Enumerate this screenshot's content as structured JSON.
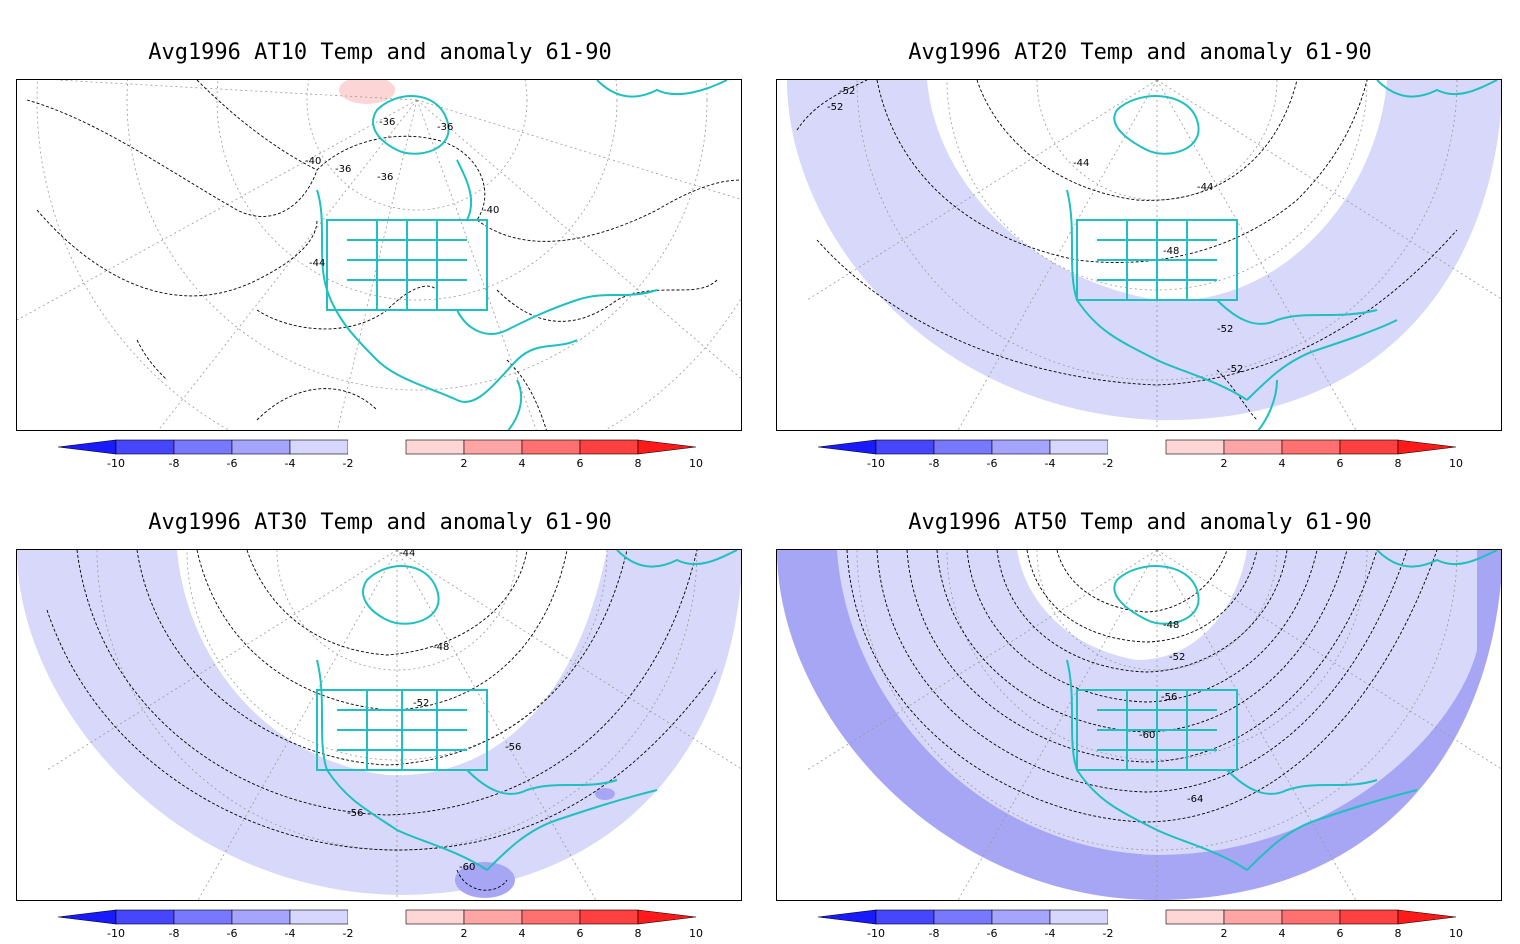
{
  "panels": [
    {
      "title": "Avg1996 AT10 Temp and anomaly 61-90",
      "contour_labels": [
        "-36",
        "-36",
        "-40",
        "-36",
        "-36",
        "-40",
        "-44"
      ]
    },
    {
      "title": "Avg1996 AT20 Temp and anomaly 61-90",
      "contour_labels": [
        "-52",
        "-52",
        "-44",
        "-44",
        "-48",
        "-52",
        "-52"
      ]
    },
    {
      "title": "Avg1996 AT30 Temp and anomaly 61-90",
      "contour_labels": [
        "-44",
        "-48",
        "-52",
        "-56",
        "-56",
        "-60"
      ]
    },
    {
      "title": "Avg1996 AT50 Temp and anomaly 61-90",
      "contour_labels": [
        "-48",
        "-52",
        "-56",
        "-60",
        "-64"
      ]
    }
  ],
  "colorbar": {
    "tick_labels": [
      "-10",
      "-8",
      "-6",
      "-4",
      "-2",
      "2",
      "4",
      "6",
      "8",
      "10"
    ],
    "colors": [
      "#1a1aff",
      "#4646ff",
      "#7878ff",
      "#a5a5ff",
      "#d6d6ff",
      "#ffffff",
      "#ffd6d6",
      "#ffa5a5",
      "#ff7070",
      "#ff4040",
      "#ff1a1a"
    ]
  },
  "map_colors": {
    "coast": "#20c0c0",
    "anomaly_light_blue": "#d8d8fb",
    "anomaly_mid_blue": "#a6a6f4",
    "anomaly_light_red": "#fcd6d6"
  }
}
